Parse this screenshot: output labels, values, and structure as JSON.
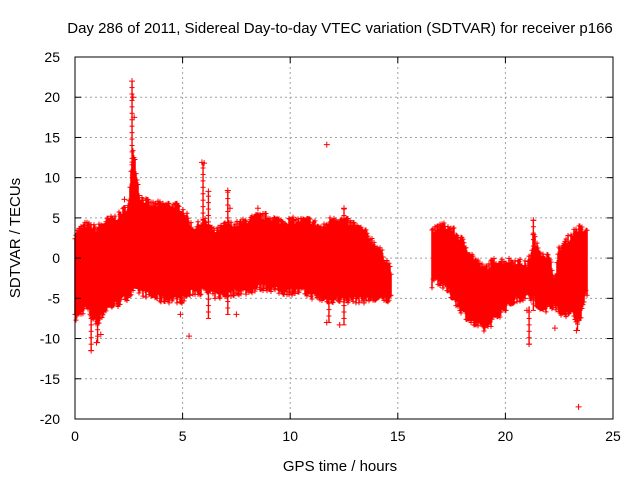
{
  "chart_data": {
    "type": "scatter",
    "title": "Day 286 of 2011, Sidereal Day-to-day VTEC variation (SDTVAR) for receiver p166",
    "xlabel": "GPS time / hours",
    "ylabel": "SDTVAR / TECUs",
    "xlim": [
      0,
      25
    ],
    "ylim": [
      -20,
      25
    ],
    "xticks": [
      0,
      5,
      10,
      15,
      20,
      25
    ],
    "yticks": [
      -20,
      -15,
      -10,
      -5,
      0,
      5,
      10,
      15,
      20,
      25
    ],
    "grid": true,
    "marker": "+",
    "color": "#ff0000",
    "series": [
      {
        "name": "SDTVAR",
        "envelope": [
          {
            "x": 0.0,
            "min": -7.5,
            "max": 3.0
          },
          {
            "x": 0.5,
            "min": -6.0,
            "max": 4.0
          },
          {
            "x": 1.0,
            "min": -8.0,
            "max": 3.5
          },
          {
            "x": 1.5,
            "min": -6.0,
            "max": 4.5
          },
          {
            "x": 2.0,
            "min": -5.5,
            "max": 5.0
          },
          {
            "x": 2.5,
            "min": -4.5,
            "max": 6.5
          },
          {
            "x": 2.7,
            "min": -4.0,
            "max": 14.0
          },
          {
            "x": 3.0,
            "min": -4.0,
            "max": 7.5
          },
          {
            "x": 3.5,
            "min": -4.5,
            "max": 6.5
          },
          {
            "x": 4.0,
            "min": -5.0,
            "max": 6.5
          },
          {
            "x": 4.5,
            "min": -5.0,
            "max": 6.5
          },
          {
            "x": 5.0,
            "min": -5.0,
            "max": 6.0
          },
          {
            "x": 5.5,
            "min": -4.0,
            "max": 3.5
          },
          {
            "x": 6.0,
            "min": -4.0,
            "max": 4.5
          },
          {
            "x": 6.5,
            "min": -4.5,
            "max": 3.0
          },
          {
            "x": 7.0,
            "min": -4.5,
            "max": 4.0
          },
          {
            "x": 7.5,
            "min": -4.0,
            "max": 4.0
          },
          {
            "x": 8.0,
            "min": -4.0,
            "max": 4.5
          },
          {
            "x": 8.5,
            "min": -3.5,
            "max": 5.0
          },
          {
            "x": 9.0,
            "min": -3.5,
            "max": 5.0
          },
          {
            "x": 9.5,
            "min": -4.0,
            "max": 4.5
          },
          {
            "x": 10.0,
            "min": -4.0,
            "max": 4.5
          },
          {
            "x": 10.5,
            "min": -4.0,
            "max": 4.5
          },
          {
            "x": 11.0,
            "min": -4.5,
            "max": 4.5
          },
          {
            "x": 11.5,
            "min": -5.0,
            "max": 3.5
          },
          {
            "x": 12.0,
            "min": -5.0,
            "max": 5.0
          },
          {
            "x": 12.5,
            "min": -5.0,
            "max": 4.5
          },
          {
            "x": 13.0,
            "min": -5.0,
            "max": 4.0
          },
          {
            "x": 13.5,
            "min": -5.0,
            "max": 3.0
          },
          {
            "x": 14.0,
            "min": -5.0,
            "max": 1.5
          },
          {
            "x": 14.5,
            "min": -5.0,
            "max": -0.5
          },
          {
            "x": 14.7,
            "min": -5.0,
            "max": -1.5
          },
          {
            "x": 16.6,
            "min": -2.0,
            "max": 3.0
          },
          {
            "x": 17.0,
            "min": -3.0,
            "max": 4.0
          },
          {
            "x": 17.5,
            "min": -4.5,
            "max": 3.5
          },
          {
            "x": 18.0,
            "min": -6.5,
            "max": 2.0
          },
          {
            "x": 18.5,
            "min": -8.0,
            "max": 0.0
          },
          {
            "x": 19.0,
            "min": -8.7,
            "max": -1.5
          },
          {
            "x": 19.5,
            "min": -7.5,
            "max": -0.5
          },
          {
            "x": 20.0,
            "min": -6.0,
            "max": -0.5
          },
          {
            "x": 20.5,
            "min": -5.0,
            "max": -0.5
          },
          {
            "x": 21.0,
            "min": -4.5,
            "max": -1.0
          },
          {
            "x": 21.2,
            "min": -5.0,
            "max": 0.5
          },
          {
            "x": 21.3,
            "min": -4.5,
            "max": 3.0
          },
          {
            "x": 21.5,
            "min": -6.5,
            "max": 1.0
          },
          {
            "x": 22.0,
            "min": -6.0,
            "max": 0.0
          },
          {
            "x": 22.3,
            "min": -5.5,
            "max": -2.5
          },
          {
            "x": 22.5,
            "min": -7.0,
            "max": 1.0
          },
          {
            "x": 23.0,
            "min": -6.5,
            "max": 2.5
          },
          {
            "x": 23.3,
            "min": -7.5,
            "max": 3.5
          },
          {
            "x": 23.5,
            "min": -7.0,
            "max": 3.5
          },
          {
            "x": 23.8,
            "min": -4.0,
            "max": 3.0
          }
        ],
        "outliers": [
          {
            "x": 0.75,
            "y": -11.5
          },
          {
            "x": 1.0,
            "y": -10.5
          },
          {
            "x": 1.2,
            "y": -9.5
          },
          {
            "x": 2.3,
            "y": 7.3
          },
          {
            "x": 2.65,
            "y": 22.0
          },
          {
            "x": 2.7,
            "y": 20.0
          },
          {
            "x": 2.75,
            "y": 17.5
          },
          {
            "x": 5.3,
            "y": -9.7
          },
          {
            "x": 4.9,
            "y": -7.0
          },
          {
            "x": 5.9,
            "y": 11.9
          },
          {
            "x": 6.0,
            "y": 11.8
          },
          {
            "x": 6.2,
            "y": 8.3
          },
          {
            "x": 7.1,
            "y": 8.4
          },
          {
            "x": 7.2,
            "y": 6.2
          },
          {
            "x": 7.5,
            "y": -7.0
          },
          {
            "x": 8.5,
            "y": 6.2
          },
          {
            "x": 11.7,
            "y": 14.1
          },
          {
            "x": 11.7,
            "y": -8.0
          },
          {
            "x": 12.3,
            "y": -8.3
          },
          {
            "x": 12.5,
            "y": 6.2
          },
          {
            "x": 21.1,
            "y": -10.7
          },
          {
            "x": 21.0,
            "y": -6.5
          },
          {
            "x": 22.3,
            "y": -8.7
          },
          {
            "x": 23.4,
            "y": -18.5
          },
          {
            "x": 23.3,
            "y": -9.0
          },
          {
            "x": 21.3,
            "y": 4.7
          }
        ]
      }
    ]
  }
}
